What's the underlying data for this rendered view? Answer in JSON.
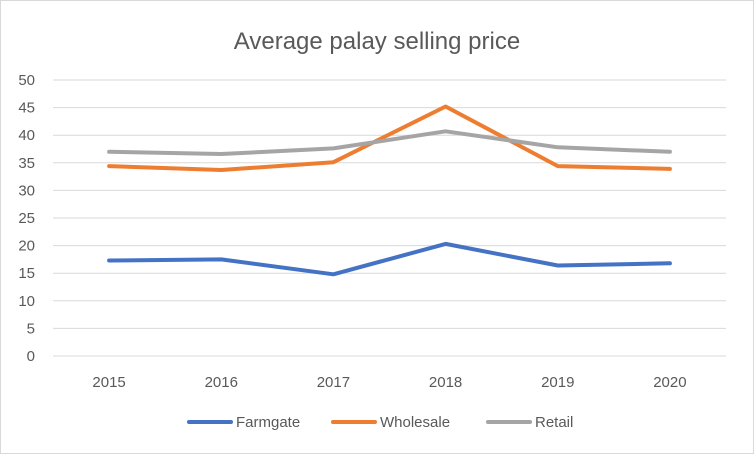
{
  "chart_data": {
    "type": "line",
    "title": "Average palay selling price",
    "xlabel": "",
    "ylabel": "",
    "x": [
      "2015",
      "2016",
      "2017",
      "2018",
      "2019",
      "2020"
    ],
    "ylim": [
      0,
      50
    ],
    "yticks": [
      0,
      5,
      10,
      15,
      20,
      25,
      30,
      35,
      40,
      45,
      50
    ],
    "grid": true,
    "legend_position": "bottom",
    "series": [
      {
        "name": "Farmgate",
        "color": "#4472c4",
        "values": [
          17.3,
          17.5,
          14.8,
          20.3,
          16.4,
          16.8
        ]
      },
      {
        "name": "Wholesale",
        "color": "#ed7d31",
        "values": [
          34.4,
          33.7,
          35.1,
          45.2,
          34.4,
          33.9
        ]
      },
      {
        "name": "Retail",
        "color": "#a5a5a5",
        "values": [
          37.0,
          36.6,
          37.6,
          40.7,
          37.8,
          37.0
        ]
      }
    ]
  }
}
